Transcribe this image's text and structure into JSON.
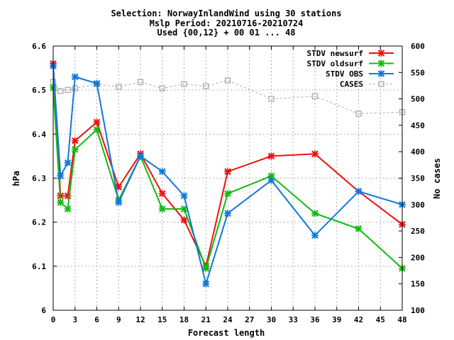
{
  "chart_data": {
    "type": "line",
    "title_lines": [
      "Selection: NorwayInlandWind using    30 stations",
      "Mslp   Period: 20210716-20210724",
      "Used {00,12} + 00 01 ... 48"
    ],
    "xlabel": "Forecast length",
    "ylabel": "hPa",
    "y2label": "No cases",
    "xlim": [
      0,
      48
    ],
    "ylim": [
      6.0,
      6.6
    ],
    "y2lim": [
      100,
      600
    ],
    "xticks": [
      0,
      3,
      6,
      9,
      12,
      15,
      18,
      21,
      24,
      27,
      30,
      33,
      36,
      39,
      42,
      45,
      48
    ],
    "yticks": [
      "6",
      "6.1",
      "6.2",
      "6.3",
      "6.4",
      "6.5",
      "6.6"
    ],
    "y2ticks": [
      100,
      150,
      200,
      250,
      300,
      350,
      400,
      450,
      500,
      550,
      600
    ],
    "grid": true,
    "legend_position": "top-right",
    "x": [
      0,
      1,
      2,
      3,
      6,
      9,
      12,
      15,
      18,
      21,
      24,
      30,
      36,
      42,
      48
    ],
    "series": [
      {
        "name": "STDV newsurf",
        "axis": "left",
        "color": "#ee1111",
        "marker": "x",
        "values": [
          6.56,
          6.26,
          6.26,
          6.385,
          6.427,
          6.28,
          6.355,
          6.265,
          6.205,
          6.1,
          6.315,
          6.35,
          6.355,
          6.27,
          6.195
        ]
      },
      {
        "name": "STDV oldsurf",
        "axis": "left",
        "color": "#11bb11",
        "marker": "x",
        "values": [
          6.505,
          6.245,
          6.23,
          6.365,
          6.41,
          6.25,
          6.35,
          6.23,
          6.23,
          6.095,
          6.265,
          6.305,
          6.22,
          6.185,
          6.095
        ]
      },
      {
        "name": "STDV OBS",
        "axis": "left",
        "color": "#1177dd",
        "marker": "x",
        "values": [
          6.555,
          6.305,
          6.335,
          6.53,
          6.515,
          6.245,
          6.35,
          6.315,
          6.26,
          6.06,
          6.22,
          6.295,
          6.17,
          6.27,
          6.24
        ]
      },
      {
        "name": "CASES",
        "axis": "right",
        "color": "#aaaaaa",
        "marker": "square",
        "dashed": true,
        "values": [
          532,
          515,
          517,
          520,
          528,
          523,
          532,
          520,
          528,
          524,
          535,
          500,
          505,
          472,
          475
        ]
      }
    ]
  }
}
